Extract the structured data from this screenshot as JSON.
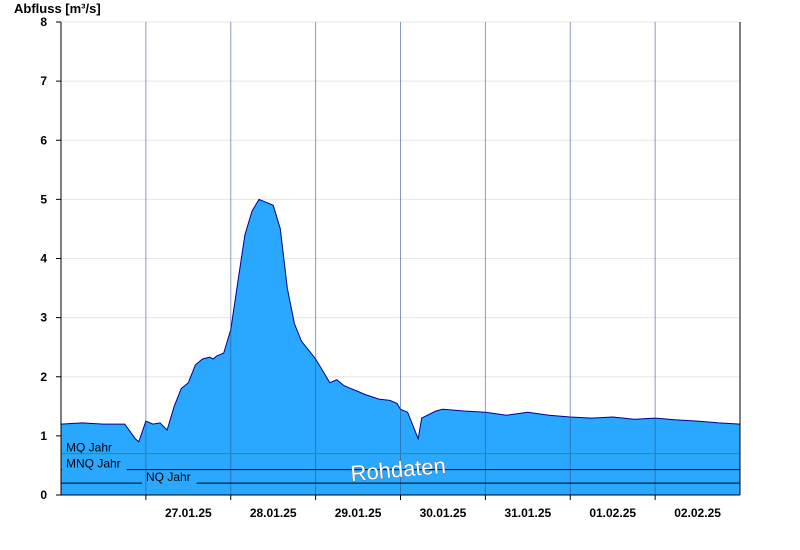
{
  "chart_data": {
    "type": "area",
    "ylabel": "Abfluss [m³/s]",
    "ylim": [
      0,
      8
    ],
    "yticks": [
      "0",
      "1",
      "2",
      "3",
      "4",
      "5",
      "6",
      "7",
      "8"
    ],
    "xlim": [
      "26.01.25 00:00",
      "03.02.25 00:00"
    ],
    "xticks": [
      "27.01.25",
      "28.01.25",
      "29.01.25",
      "30.01.25",
      "31.01.25",
      "01.02.25",
      "02.02.25"
    ],
    "grid": true,
    "series": [
      {
        "x": [
          "26.01.25 00:00",
          "26.01.25 06:00",
          "26.01.25 12:00",
          "26.01.25 18:00",
          "26.01.25 21:00",
          "26.01.25 22:00",
          "27.01.25 00:00",
          "27.01.25 02:00",
          "27.01.25 04:00",
          "27.01.25 06:00",
          "27.01.25 08:00",
          "27.01.25 10:00",
          "27.01.25 12:00",
          "27.01.25 14:00",
          "27.01.25 16:00",
          "27.01.25 18:00",
          "27.01.25 19:00",
          "27.01.25 20:00",
          "27.01.25 22:00",
          "28.01.25 00:00",
          "28.01.25 02:00",
          "28.01.25 04:00",
          "28.01.25 06:00",
          "28.01.25 08:00",
          "28.01.25 10:00",
          "28.01.25 12:00",
          "28.01.25 14:00",
          "28.01.25 16:00",
          "28.01.25 18:00",
          "28.01.25 20:00",
          "28.01.25 22:00",
          "29.01.25 00:00",
          "29.01.25 02:00",
          "29.01.25 04:00",
          "29.01.25 06:00",
          "29.01.25 08:00",
          "29.01.25 10:00",
          "29.01.25 12:00",
          "29.01.25 14:00",
          "29.01.25 18:00",
          "29.01.25 21:00",
          "29.01.25 23:00",
          "30.01.25 00:00",
          "30.01.25 02:00",
          "30.01.25 05:00",
          "30.01.25 06:00",
          "30.01.25 10:00",
          "30.01.25 12:00",
          "30.01.25 18:00",
          "31.01.25 00:00",
          "31.01.25 06:00",
          "31.01.25 12:00",
          "31.01.25 18:00",
          "01.02.25 00:00",
          "01.02.25 06:00",
          "01.02.25 12:00",
          "01.02.25 18:00",
          "02.02.25 00:00",
          "02.02.25 06:00",
          "02.02.25 12:00",
          "02.02.25 18:00",
          "03.02.25 00:00"
        ],
        "y": [
          1.2,
          1.22,
          1.2,
          1.2,
          0.95,
          0.9,
          1.25,
          1.2,
          1.22,
          1.1,
          1.5,
          1.8,
          1.9,
          2.2,
          2.3,
          2.33,
          2.3,
          2.35,
          2.4,
          2.8,
          3.6,
          4.4,
          4.8,
          5.0,
          4.95,
          4.9,
          4.5,
          3.5,
          2.9,
          2.6,
          2.45,
          2.3,
          2.1,
          1.9,
          1.95,
          1.85,
          1.8,
          1.75,
          1.7,
          1.62,
          1.6,
          1.55,
          1.45,
          1.4,
          0.95,
          1.3,
          1.42,
          1.45,
          1.42,
          1.4,
          1.35,
          1.4,
          1.35,
          1.32,
          1.3,
          1.32,
          1.28,
          1.3,
          1.27,
          1.25,
          1.22,
          1.2
        ]
      }
    ],
    "reference_lines": [
      {
        "label": "MQ Jahr",
        "value": 0.7,
        "color": "#2e9b2e"
      },
      {
        "label": "MNQ Jahr",
        "value": 0.43,
        "color": "#000000"
      },
      {
        "label": "NQ Jahr",
        "value": 0.2,
        "color": "#000000"
      }
    ],
    "fill_color": "#2aa8ff",
    "line_color": "#00008b",
    "watermark": "Rohdaten"
  }
}
